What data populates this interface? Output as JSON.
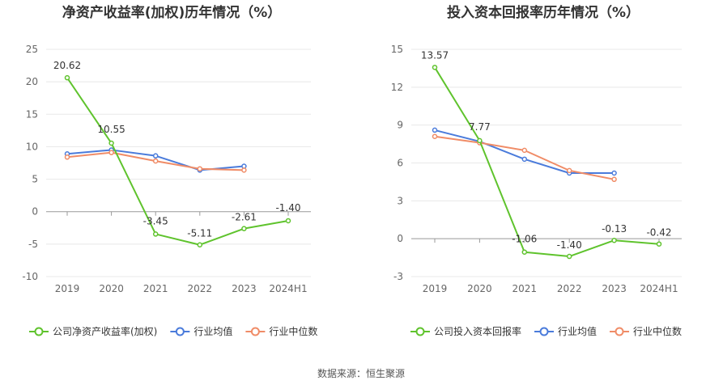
{
  "source_text": "数据来源：恒生聚源",
  "colors": {
    "company": "#5fc32d",
    "avg": "#4a7bdb",
    "median": "#f08c67",
    "grid": "#e8e8e8",
    "axis": "#999999"
  },
  "chart_data": [
    {
      "type": "line",
      "title": "净资产收益率(加权)历年情况（%）",
      "categories": [
        "2019",
        "2020",
        "2021",
        "2022",
        "2023",
        "2024H1"
      ],
      "ylim": [
        -10,
        25
      ],
      "yticks": [
        -10,
        -5,
        0,
        5,
        10,
        15,
        20,
        25
      ],
      "series": [
        {
          "name": "公司净资产收益率(加权)",
          "key": "company",
          "values": [
            20.62,
            10.55,
            -3.45,
            -5.11,
            -2.61,
            -1.4
          ],
          "labels": [
            "20.62",
            "10.55",
            "-3.45",
            "-5.11",
            "-2.61",
            "-1.40"
          ]
        },
        {
          "name": "行业均值",
          "key": "avg",
          "values": [
            8.9,
            9.5,
            8.6,
            6.4,
            7.0,
            null
          ]
        },
        {
          "name": "行业中位数",
          "key": "median",
          "values": [
            8.4,
            9.1,
            7.8,
            6.6,
            6.4,
            null
          ]
        }
      ],
      "legend_position": "bottom"
    },
    {
      "type": "line",
      "title": "投入资本回报率历年情况（%）",
      "categories": [
        "2019",
        "2020",
        "2021",
        "2022",
        "2023",
        "2024H1"
      ],
      "ylim": [
        -3,
        15
      ],
      "yticks": [
        -3,
        0,
        3,
        6,
        9,
        12,
        15
      ],
      "series": [
        {
          "name": "公司投入资本回报率",
          "key": "company",
          "values": [
            13.57,
            7.77,
            -1.06,
            -1.4,
            -0.13,
            -0.42
          ],
          "labels": [
            "13.57",
            "7.77",
            "-1.06",
            "-1.40",
            "-0.13",
            "-0.42"
          ]
        },
        {
          "name": "行业均值",
          "key": "avg",
          "values": [
            8.6,
            7.7,
            6.3,
            5.2,
            5.2,
            null
          ]
        },
        {
          "name": "行业中位数",
          "key": "median",
          "values": [
            8.1,
            7.6,
            7.0,
            5.4,
            4.7,
            null
          ]
        }
      ],
      "legend_position": "bottom"
    }
  ]
}
